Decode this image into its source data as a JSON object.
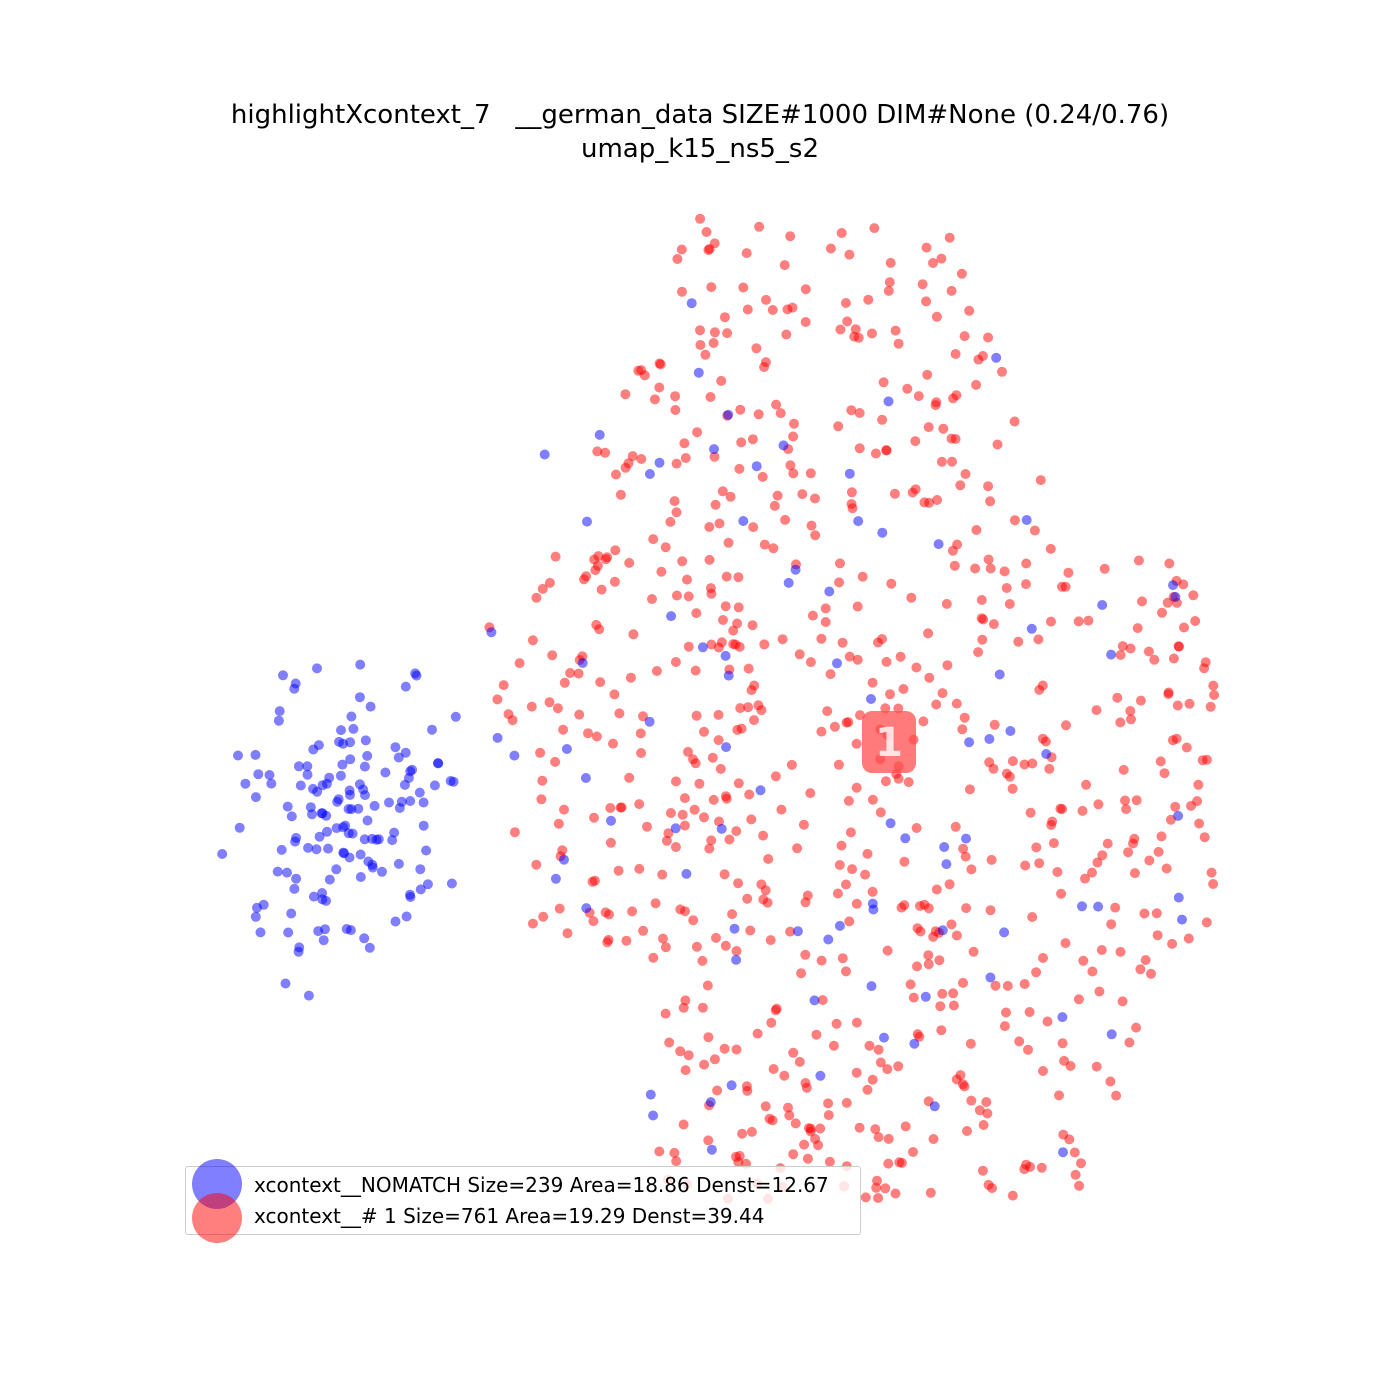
{
  "chart_data": {
    "type": "scatter",
    "title": "highlightXcontext_7   __german_data SIZE#1000 DIM#None (0.24/0.76)",
    "subtitle": "umap_k15_ns5_s2",
    "xlabel": "",
    "ylabel": "",
    "grid": false,
    "axes_visible": false,
    "legend_placement": "lower-left",
    "series": [
      {
        "name": "xcontext__NOMATCH Size=239 Area=18.86 Denst=12.67",
        "color": "#0000ff"
      },
      {
        "name": "xcontext__# 1 Size=761 Area=19.29 Denst=39.44",
        "color": "#ff0000"
      }
    ],
    "cluster_labels": [
      {
        "text": "1",
        "color": "#ff4d4d"
      }
    ],
    "notes": "Points are UMAP embedding samples; individual coordinates are unlabeled."
  }
}
